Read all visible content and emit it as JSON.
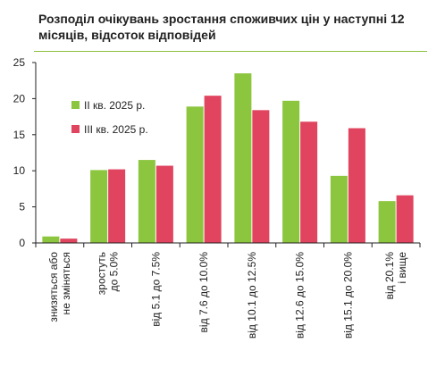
{
  "chart_data": {
    "type": "bar",
    "title": "Розподіл очікувань зростання споживчих цін у наступні 12 місяців, відсоток відповідей",
    "categories": [
      [
        "знизяться або",
        "не зміняться"
      ],
      [
        "зростуть",
        "до 5.0%"
      ],
      [
        "від 5.1 до 7.5%"
      ],
      [
        "від 7.6 до 10.0%"
      ],
      [
        "від 10.1 до 12.5%"
      ],
      [
        "від 12.6 до 15.0%"
      ],
      [
        "від 15.1 до 20.0%"
      ],
      [
        "від 20.1%",
        "і вище"
      ]
    ],
    "series": [
      {
        "name": "ІІ кв. 2025 р.",
        "color": "#8cc63f",
        "values": [
          0.9,
          10.1,
          11.5,
          18.9,
          23.5,
          19.7,
          9.3,
          5.8
        ]
      },
      {
        "name": "ІІІ кв. 2025 р.",
        "color": "#e0445e",
        "values": [
          0.6,
          10.2,
          10.7,
          20.4,
          18.4,
          16.8,
          15.9,
          6.6
        ]
      }
    ],
    "ylim": [
      0,
      25
    ],
    "yticks": [
      0,
      5,
      10,
      15,
      20,
      25
    ],
    "legend": "top-left",
    "grid": false
  }
}
